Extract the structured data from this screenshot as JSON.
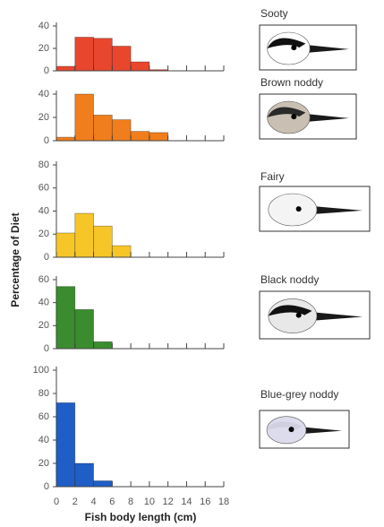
{
  "ylabel": "Percentage of Diet",
  "chart_data": [
    {
      "type": "histogram",
      "title": "Sooty",
      "bins": [
        0,
        2,
        4,
        6,
        8,
        10,
        12
      ],
      "values": [
        4,
        30,
        29,
        22,
        8,
        1
      ],
      "color": "#e8472e",
      "xlim": [
        0,
        18
      ],
      "xticks": [
        0,
        2,
        4,
        6,
        8,
        10,
        12,
        14,
        16,
        18
      ],
      "ylim": [
        0,
        40
      ],
      "yticks": [
        0,
        20,
        40
      ]
    },
    {
      "type": "histogram",
      "title": "Brown noddy",
      "bins": [
        0,
        2,
        4,
        6,
        8,
        10,
        12
      ],
      "values": [
        3,
        40,
        22,
        18,
        8,
        7
      ],
      "color": "#f07e1c",
      "xlim": [
        0,
        18
      ],
      "xticks": [
        0,
        2,
        4,
        6,
        8,
        10,
        12,
        14,
        16,
        18
      ],
      "ylim": [
        0,
        40
      ],
      "yticks": [
        0,
        20,
        40
      ]
    },
    {
      "type": "histogram",
      "title": "Fairy",
      "bins": [
        0,
        2,
        4,
        6,
        8
      ],
      "values": [
        21,
        38,
        27,
        10
      ],
      "color": "#f6c628",
      "xlim": [
        0,
        18
      ],
      "xticks": [
        0,
        2,
        4,
        6,
        8,
        10,
        12,
        14,
        16,
        18
      ],
      "ylim": [
        0,
        80
      ],
      "yticks": [
        0,
        20,
        40,
        60,
        80
      ]
    },
    {
      "type": "histogram",
      "title": "Black noddy",
      "bins": [
        0,
        2,
        4,
        6
      ],
      "values": [
        54,
        34,
        6
      ],
      "color": "#3b8c2f",
      "xlim": [
        0,
        18
      ],
      "xticks": [
        0,
        2,
        4,
        6,
        8,
        10,
        12,
        14,
        16,
        18
      ],
      "ylim": [
        0,
        60
      ],
      "yticks": [
        0,
        20,
        40,
        60
      ]
    },
    {
      "type": "histogram",
      "title": "Blue-grey noddy",
      "bins": [
        0,
        2,
        4,
        6
      ],
      "values": [
        72,
        20,
        5
      ],
      "color": "#1f5ec6",
      "xlim": [
        0,
        18
      ],
      "xticks": [
        0,
        2,
        4,
        6,
        8,
        10,
        12,
        14,
        16,
        18
      ],
      "xtick_labels": true,
      "ylim": [
        0,
        100
      ],
      "yticks": [
        0,
        20,
        40,
        60,
        80,
        100
      ],
      "xlabel": "Fish body length (cm)"
    }
  ]
}
